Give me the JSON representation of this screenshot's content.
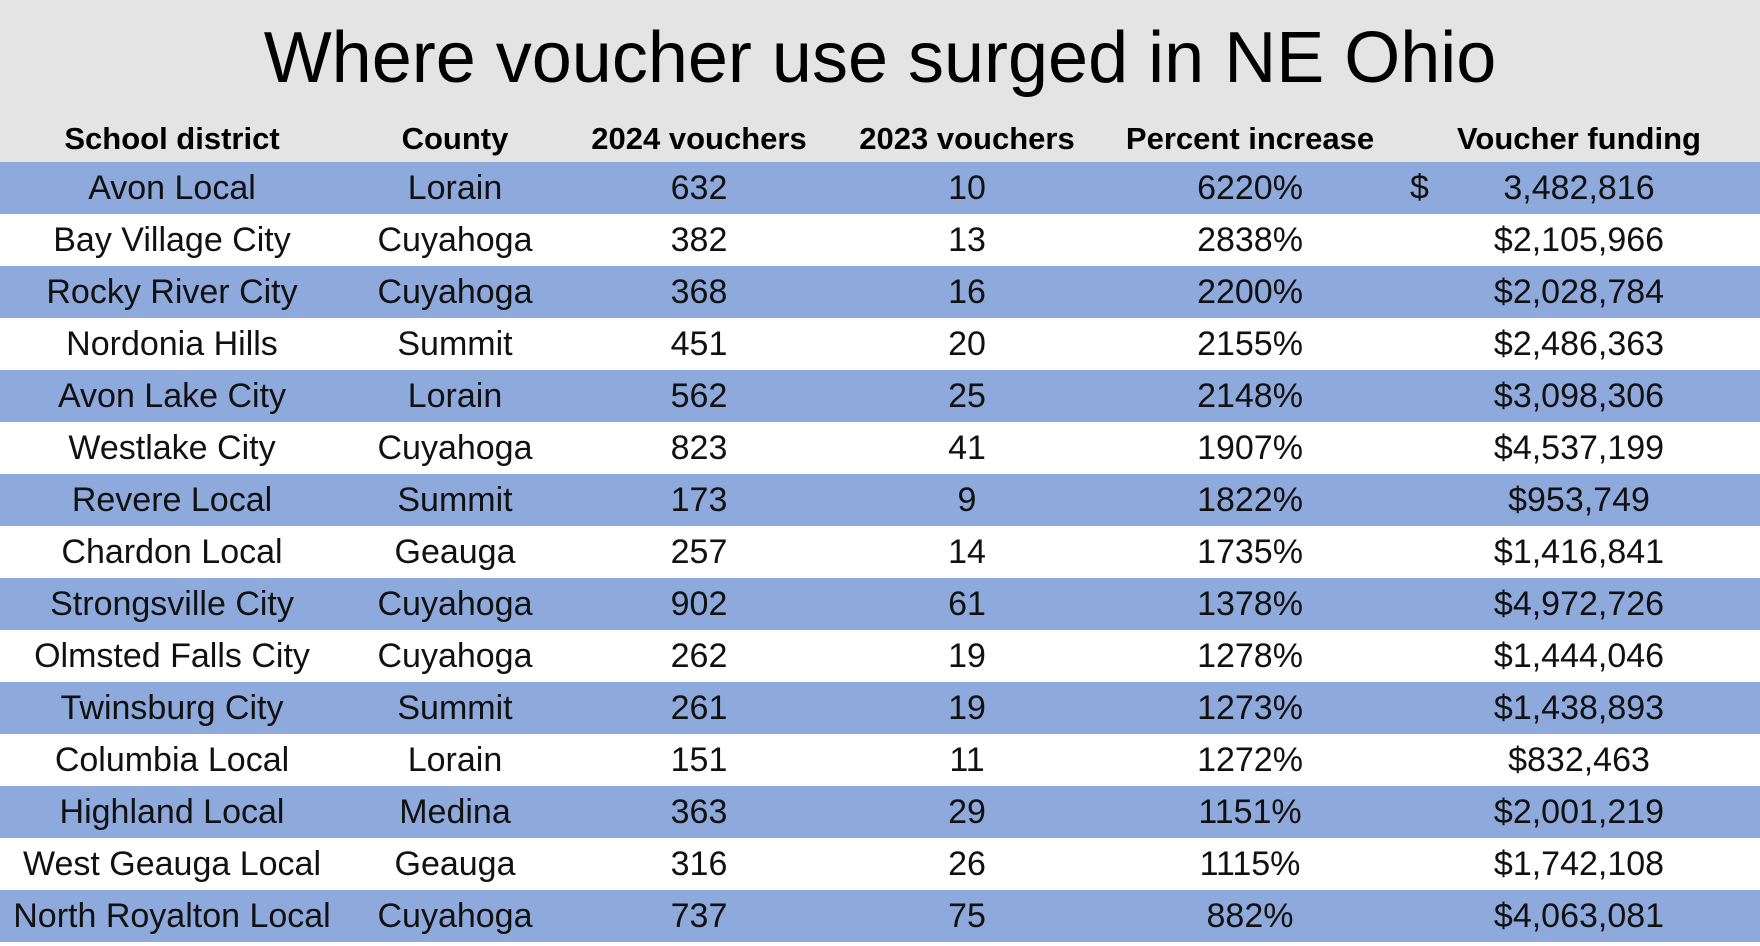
{
  "title": "Where voucher use surged in NE Ohio",
  "headers": [
    "School district",
    "County",
    "2024 vouchers",
    "2023 vouchers",
    "Percent increase",
    "Voucher funding"
  ],
  "rows": [
    {
      "district": "Avon Local",
      "county": "Lorain",
      "v2024": "632",
      "v2023": "10",
      "pct": "6220%",
      "funding_symbol": "$",
      "funding_amount": "3,482,816"
    },
    {
      "district": "Bay Village City",
      "county": "Cuyahoga",
      "v2024": "382",
      "v2023": "13",
      "pct": "2838%",
      "funding": "$2,105,966"
    },
    {
      "district": "Rocky River City",
      "county": "Cuyahoga",
      "v2024": "368",
      "v2023": "16",
      "pct": "2200%",
      "funding": "$2,028,784"
    },
    {
      "district": "Nordonia Hills",
      "county": "Summit",
      "v2024": "451",
      "v2023": "20",
      "pct": "2155%",
      "funding": "$2,486,363"
    },
    {
      "district": "Avon Lake City",
      "county": "Lorain",
      "v2024": "562",
      "v2023": "25",
      "pct": "2148%",
      "funding": "$3,098,306"
    },
    {
      "district": "Westlake City",
      "county": "Cuyahoga",
      "v2024": "823",
      "v2023": "41",
      "pct": "1907%",
      "funding": "$4,537,199"
    },
    {
      "district": "Revere Local",
      "county": "Summit",
      "v2024": "173",
      "v2023": "9",
      "pct": "1822%",
      "funding": "$953,749"
    },
    {
      "district": "Chardon Local",
      "county": "Geauga",
      "v2024": "257",
      "v2023": "14",
      "pct": "1735%",
      "funding": "$1,416,841"
    },
    {
      "district": "Strongsville City",
      "county": "Cuyahoga",
      "v2024": "902",
      "v2023": "61",
      "pct": "1378%",
      "funding": "$4,972,726"
    },
    {
      "district": "Olmsted Falls City",
      "county": "Cuyahoga",
      "v2024": "262",
      "v2023": "19",
      "pct": "1278%",
      "funding": "$1,444,046"
    },
    {
      "district": "Twinsburg City",
      "county": "Summit",
      "v2024": "261",
      "v2023": "19",
      "pct": "1273%",
      "funding": "$1,438,893"
    },
    {
      "district": "Columbia Local",
      "county": "Lorain",
      "v2024": "151",
      "v2023": "11",
      "pct": "1272%",
      "funding": "$832,463"
    },
    {
      "district": "Highland Local",
      "county": "Medina",
      "v2024": "363",
      "v2023": "29",
      "pct": "1151%",
      "funding": "$2,001,219"
    },
    {
      "district": "West Geauga Local",
      "county": "Geauga",
      "v2024": "316",
      "v2023": "26",
      "pct": "1115%",
      "funding": "$1,742,108"
    },
    {
      "district": "North Royalton Local",
      "county": "Cuyahoga",
      "v2024": "737",
      "v2023": "75",
      "pct": "882%",
      "funding": "$4,063,081"
    }
  ],
  "colors": {
    "band": "#8ea9db",
    "title_background": "#e4e4e4"
  }
}
